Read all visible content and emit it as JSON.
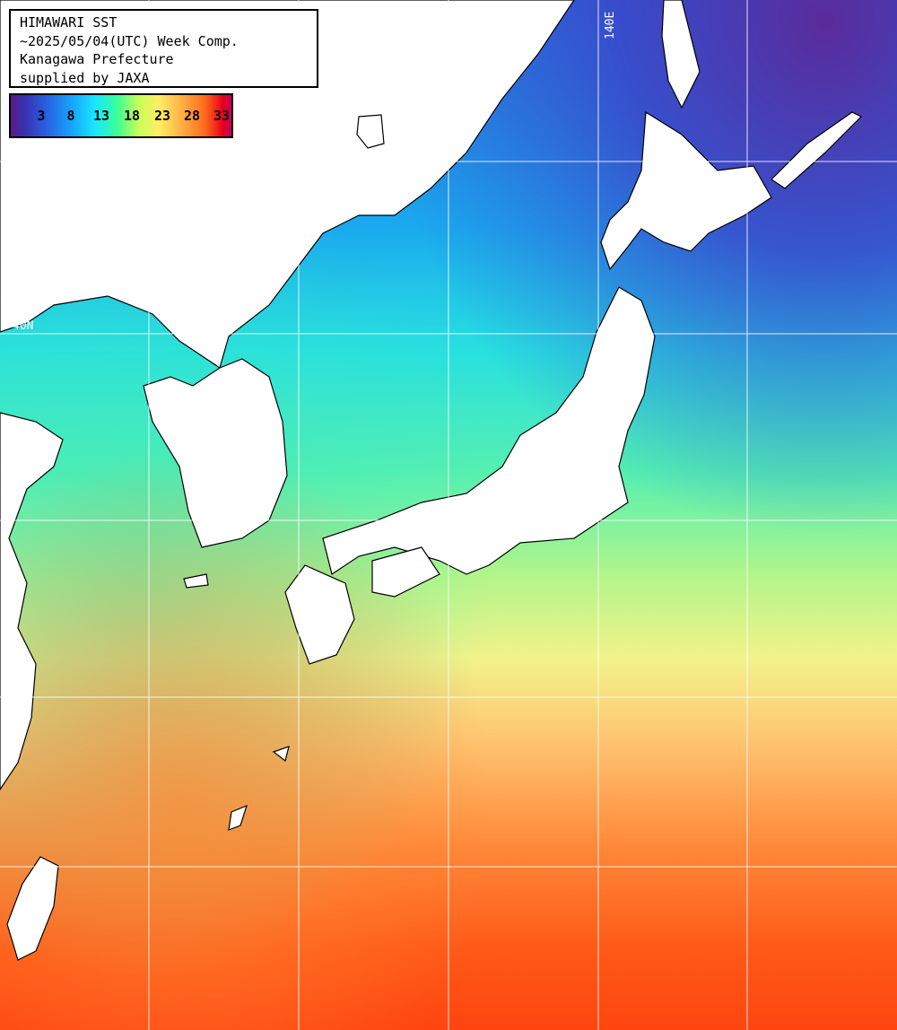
{
  "map": {
    "title_lines": [
      "HIMAWARI SST",
      "~2025/05/04(UTC) Week Comp.",
      "Kanagawa Prefecture",
      "supplied by JAXA"
    ],
    "scale_labels": [
      "3",
      "8",
      "13",
      "18",
      "23",
      "28",
      "33"
    ],
    "grid_labels": {
      "lon_140": "140E",
      "lat_40": "40N"
    },
    "colors": {
      "land": "#ffffff",
      "coast": "#000000",
      "grid": "#ffffff",
      "cold": "#4a2b9a",
      "cool": "#2f7dff",
      "mild": "#22ddee",
      "moderate": "#7ff0a0",
      "warm": "#f7f07a",
      "hot": "#ff9a3a",
      "very_hot": "#ff4a10"
    }
  }
}
